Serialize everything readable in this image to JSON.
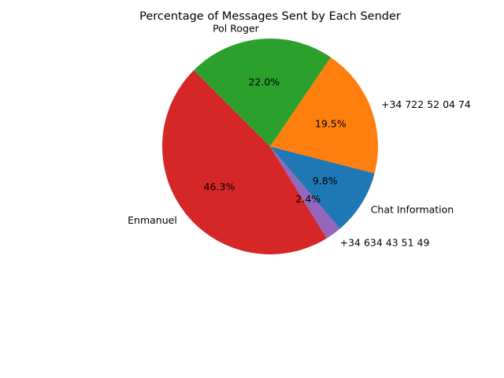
{
  "chart_data": {
    "type": "pie",
    "title": "Percentage of Messages Sent by Each Sender",
    "start_angle_deg": 135,
    "direction": "counterclockwise",
    "slices": [
      {
        "label": "Enmanuel",
        "value": 46.3,
        "pct_label": "46.3%",
        "color": "#d62728"
      },
      {
        "label": "+34 634 43 51 49",
        "value": 2.4,
        "pct_label": "2.4%",
        "color": "#9467bd"
      },
      {
        "label": "Chat Information",
        "value": 9.8,
        "pct_label": "9.8%",
        "color": "#1f77b4"
      },
      {
        "label": "+34 722 52 04 74",
        "value": 19.5,
        "pct_label": "19.5%",
        "color": "#ff7f0e"
      },
      {
        "label": "Pol Roger",
        "value": 22.0,
        "pct_label": "22.0%",
        "color": "#2ca02c"
      }
    ]
  }
}
